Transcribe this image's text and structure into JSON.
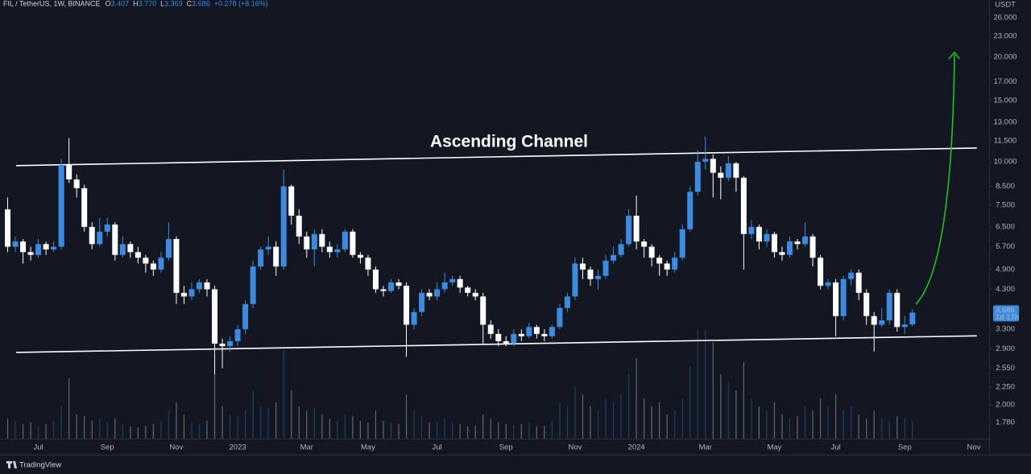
{
  "chart_data": {
    "type": "candlestick",
    "symbol": "FIL / TetherUS, 1W, BINANCE",
    "ohlc_header": [
      {
        "prefix": "O",
        "value": 3.407,
        "label": "3.407"
      },
      {
        "prefix": "H",
        "value": 3.77,
        "label": "3.770"
      },
      {
        "prefix": "L",
        "value": 3.369,
        "label": "3.369"
      },
      {
        "prefix": "C",
        "value": 3.686,
        "label": "3.686"
      }
    ],
    "change": "+0.278 (+8.16%)",
    "currency": "USDT",
    "countdown": "1d 17h",
    "annotation": "Ascending Channel",
    "brand": "TradingView",
    "log_scale": true,
    "grid": false,
    "xlim": [
      -1,
      128
    ],
    "ylim": [
      1.6,
      29.2
    ],
    "xticks": [
      {
        "value": 4,
        "label": "Jul"
      },
      {
        "value": 13,
        "label": "Sep"
      },
      {
        "value": 22,
        "label": "Nov"
      },
      {
        "value": 30,
        "label": "2023"
      },
      {
        "value": 39,
        "label": "Mar"
      },
      {
        "value": 47,
        "label": "May"
      },
      {
        "value": 56,
        "label": "Jul"
      },
      {
        "value": 65,
        "label": "Sep"
      },
      {
        "value": 74,
        "label": "Nov"
      },
      {
        "value": 82,
        "label": "2024"
      },
      {
        "value": 91,
        "label": "Mar"
      },
      {
        "value": 100,
        "label": "May"
      },
      {
        "value": 108,
        "label": "Jul"
      },
      {
        "value": 117,
        "label": "Sep"
      },
      {
        "value": 126,
        "label": "Nov"
      }
    ],
    "yticks": [
      {
        "value": 26,
        "label": "26.000"
      },
      {
        "value": 23,
        "label": "23.000"
      },
      {
        "value": 20,
        "label": "20.000"
      },
      {
        "value": 17,
        "label": "17.000"
      },
      {
        "value": 15,
        "label": "15.000"
      },
      {
        "value": 13,
        "label": "13.000"
      },
      {
        "value": 11.5,
        "label": "11.500"
      },
      {
        "value": 10,
        "label": "10.000"
      },
      {
        "value": 8.5,
        "label": "8.500"
      },
      {
        "value": 7.5,
        "label": "7.500"
      },
      {
        "value": 6.5,
        "label": "6.500"
      },
      {
        "value": 5.7,
        "label": "5.700"
      },
      {
        "value": 4.9,
        "label": "4.900"
      },
      {
        "value": 4.3,
        "label": "4.300"
      },
      {
        "value": 3.3,
        "label": "3.300"
      },
      {
        "value": 2.9,
        "label": "2.900"
      },
      {
        "value": 2.55,
        "label": "2.550"
      },
      {
        "value": 2.25,
        "label": "2.250"
      },
      {
        "value": 2,
        "label": "2.000"
      },
      {
        "value": 1.78,
        "label": "1.780"
      }
    ],
    "trendlines": [
      {
        "x": [
          1.1,
          126.4
        ],
        "y": [
          9.75,
          10.96
        ],
        "color": "#ffffff"
      },
      {
        "x": [
          1.1,
          126.4
        ],
        "y": [
          2.83,
          3.16
        ],
        "color": "#ffffff"
      }
    ],
    "series": [
      {
        "up_color": "#3d8be0",
        "down_color": "#ffffff",
        "open": [
          7.3,
          5.7,
          5.9,
          5.5,
          5.4,
          5.8,
          5.6,
          5.7,
          9.8,
          8.9,
          8.4,
          6.5,
          5.8,
          6.3,
          6.6,
          5.4,
          5.8,
          5.5,
          5.3,
          5.1,
          4.9,
          5.3,
          6.0,
          4.2,
          4.1,
          4.3,
          4.5,
          4.3,
          3.0,
          2.95,
          3.05,
          3.3,
          3.9,
          5.0,
          5.6,
          5.7,
          5.0,
          8.5,
          7.0,
          6.1,
          5.6,
          6.2,
          5.7,
          5.5,
          5.6,
          6.3,
          5.4,
          5.3,
          4.9,
          4.3,
          4.25,
          4.5,
          4.4,
          3.4,
          3.7,
          4.2,
          4.1,
          4.3,
          4.5,
          4.6,
          4.35,
          4.2,
          4.1,
          3.4,
          3.2,
          3.05,
          3.0,
          3.2,
          3.15,
          3.35,
          3.2,
          3.15,
          3.35,
          3.8,
          4.1,
          5.1,
          4.9,
          4.6,
          4.7,
          5.2,
          5.4,
          5.8,
          7.0,
          5.9,
          5.7,
          5.3,
          5.1,
          4.9,
          5.3,
          6.4,
          8.2,
          10.0,
          10.2,
          9.3,
          9.0,
          9.9,
          9.0,
          6.2,
          6.5,
          5.9,
          6.2,
          5.5,
          5.4,
          5.9,
          5.8,
          6.1,
          5.3,
          4.4,
          4.5,
          3.6,
          4.6,
          4.8,
          4.2,
          3.6,
          3.4,
          3.5,
          4.2,
          3.35,
          3.407
        ],
        "high": [
          7.9,
          6.1,
          6.0,
          5.7,
          6.0,
          5.9,
          5.9,
          10.2,
          11.7,
          9.2,
          8.6,
          6.7,
          6.9,
          6.9,
          6.7,
          6.1,
          5.9,
          5.7,
          5.4,
          5.2,
          5.5,
          6.7,
          6.1,
          4.4,
          4.5,
          4.6,
          4.6,
          4.4,
          3.1,
          3.15,
          3.4,
          4.0,
          5.2,
          5.7,
          6.1,
          5.9,
          9.5,
          8.6,
          7.3,
          6.3,
          6.4,
          6.4,
          5.9,
          5.8,
          6.4,
          6.4,
          5.5,
          5.4,
          5.0,
          4.4,
          4.6,
          4.6,
          4.5,
          3.8,
          4.3,
          4.3,
          4.5,
          4.8,
          4.7,
          4.7,
          4.4,
          4.3,
          4.2,
          3.5,
          3.3,
          3.15,
          3.3,
          3.3,
          3.45,
          3.4,
          3.3,
          3.4,
          3.9,
          4.2,
          5.3,
          5.3,
          5.0,
          4.9,
          5.4,
          5.7,
          6.0,
          7.3,
          8.0,
          6.0,
          5.8,
          5.4,
          5.2,
          5.5,
          6.6,
          8.5,
          10.8,
          11.8,
          10.5,
          9.7,
          10.4,
          10.0,
          9.1,
          6.8,
          6.6,
          6.4,
          6.3,
          5.7,
          6.1,
          6.0,
          6.7,
          6.2,
          5.4,
          4.6,
          4.6,
          4.7,
          4.9,
          4.9,
          4.3,
          3.7,
          3.8,
          4.3,
          4.3,
          3.6,
          3.77
        ],
        "low": [
          5.5,
          5.5,
          5.1,
          5.2,
          5.3,
          5.4,
          5.5,
          5.6,
          8.7,
          7.9,
          6.3,
          5.6,
          5.7,
          6.1,
          5.2,
          5.3,
          5.3,
          5.1,
          4.8,
          4.7,
          4.8,
          5.2,
          3.9,
          3.9,
          4.0,
          4.2,
          4.1,
          2.45,
          2.55,
          2.85,
          2.95,
          3.2,
          3.8,
          4.9,
          5.4,
          4.7,
          4.9,
          6.6,
          5.8,
          5.3,
          5.0,
          5.5,
          5.3,
          5.3,
          5.5,
          5.3,
          5.1,
          4.7,
          4.2,
          4.1,
          4.2,
          4.3,
          2.75,
          3.3,
          3.6,
          4.0,
          4.0,
          4.2,
          4.4,
          4.2,
          4.1,
          4.0,
          3.0,
          3.1,
          2.95,
          2.95,
          2.95,
          3.05,
          3.1,
          3.1,
          3.05,
          3.1,
          3.3,
          3.7,
          4.0,
          4.6,
          4.4,
          4.3,
          4.6,
          5.1,
          5.3,
          5.7,
          5.6,
          5.3,
          5.0,
          4.7,
          4.7,
          4.8,
          5.2,
          6.3,
          8.0,
          9.5,
          7.9,
          7.8,
          8.8,
          8.2,
          4.9,
          6.0,
          5.6,
          5.7,
          5.3,
          5.2,
          5.3,
          5.6,
          5.7,
          5.0,
          4.3,
          4.3,
          3.15,
          3.5,
          4.4,
          4.0,
          3.4,
          2.85,
          3.35,
          3.4,
          3.25,
          3.2,
          3.369
        ],
        "close": [
          5.7,
          5.9,
          5.5,
          5.4,
          5.8,
          5.6,
          5.7,
          9.8,
          8.9,
          8.4,
          6.5,
          5.8,
          6.3,
          6.6,
          5.4,
          5.8,
          5.5,
          5.3,
          5.1,
          4.9,
          5.3,
          6.0,
          4.2,
          4.1,
          4.3,
          4.5,
          4.3,
          3.0,
          2.95,
          3.05,
          3.3,
          3.9,
          5.0,
          5.6,
          5.7,
          5.0,
          8.5,
          7.0,
          6.1,
          5.6,
          6.2,
          5.7,
          5.5,
          5.6,
          6.3,
          5.4,
          5.3,
          4.9,
          4.3,
          4.25,
          4.5,
          4.4,
          3.4,
          3.7,
          4.2,
          4.1,
          4.3,
          4.5,
          4.6,
          4.35,
          4.2,
          4.1,
          3.4,
          3.2,
          3.05,
          3.0,
          3.2,
          3.15,
          3.35,
          3.2,
          3.15,
          3.35,
          3.8,
          4.1,
          5.1,
          4.9,
          4.6,
          4.7,
          5.2,
          5.4,
          5.8,
          7.0,
          5.9,
          5.7,
          5.3,
          5.1,
          4.9,
          5.3,
          6.4,
          8.2,
          10.0,
          10.2,
          9.3,
          9.0,
          9.9,
          9.0,
          6.2,
          6.5,
          5.9,
          6.2,
          5.5,
          5.4,
          5.9,
          5.8,
          6.1,
          5.3,
          4.4,
          4.5,
          3.6,
          4.6,
          4.8,
          4.2,
          3.6,
          3.4,
          3.5,
          4.2,
          3.35,
          3.407,
          3.686
        ],
        "volume": [
          25,
          22,
          18,
          20,
          15,
          18,
          22,
          40,
          75,
          30,
          28,
          22,
          25,
          20,
          25,
          18,
          15,
          14,
          16,
          18,
          22,
          35,
          45,
          30,
          20,
          18,
          22,
          80,
          40,
          30,
          28,
          35,
          60,
          40,
          38,
          45,
          110,
          60,
          40,
          35,
          38,
          30,
          25,
          22,
          30,
          28,
          22,
          20,
          35,
          22,
          20,
          18,
          55,
          35,
          28,
          20,
          22,
          25,
          20,
          18,
          15,
          16,
          30,
          25,
          20,
          18,
          16,
          18,
          20,
          15,
          16,
          22,
          45,
          40,
          65,
          55,
          40,
          35,
          50,
          45,
          55,
          80,
          100,
          50,
          40,
          45,
          30,
          35,
          50,
          90,
          135,
          135,
          120,
          80,
          70,
          60,
          95,
          50,
          40,
          35,
          45,
          30,
          25,
          28,
          40,
          35,
          50,
          40,
          55,
          35,
          40,
          30,
          25,
          35,
          25,
          22,
          28,
          25,
          22
        ]
      }
    ]
  }
}
